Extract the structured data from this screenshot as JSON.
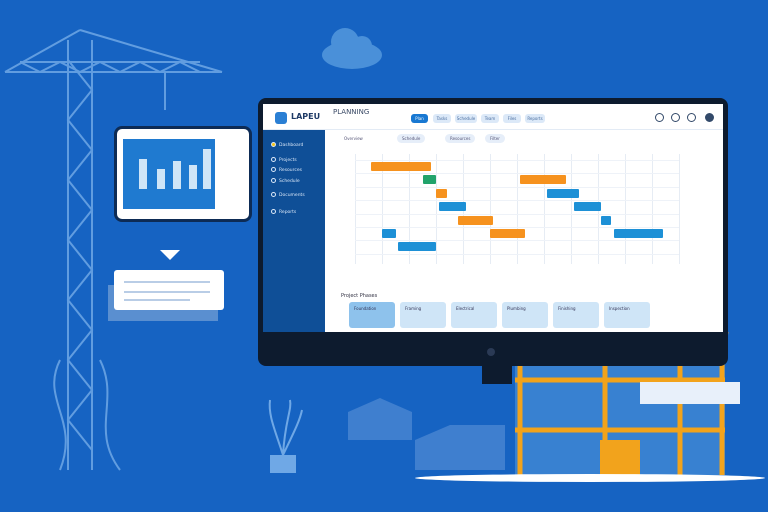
{
  "app": {
    "brand": "LAPEU",
    "title": "PLANNING"
  },
  "nav": [
    "Plan",
    "Tasks",
    "Schedule",
    "Team",
    "Files",
    "Reports"
  ],
  "sidebar": [
    "Dashboard",
    "Projects",
    "Resources",
    "Schedule",
    "Documents",
    "Reports"
  ],
  "filters": [
    "Overview",
    "Schedule",
    "Resources",
    "Filter"
  ],
  "section_title": "Project Phases",
  "cards": [
    "Foundation",
    "Framing",
    "Electrical",
    "Plumbing",
    "Finishing",
    "Inspection"
  ],
  "gantt": {
    "columns": 12,
    "rows": 7,
    "tasks": [
      {
        "row": 0,
        "start": 0.6,
        "end": 2.8,
        "color": "#f6921e"
      },
      {
        "row": 1,
        "start": 2.5,
        "end": 3.0,
        "color": "#21a36b"
      },
      {
        "row": 1,
        "start": 6.1,
        "end": 7.8,
        "color": "#f6921e"
      },
      {
        "row": 2,
        "start": 3.0,
        "end": 3.4,
        "color": "#f6921e"
      },
      {
        "row": 2,
        "start": 7.1,
        "end": 8.3,
        "color": "#1d90d6"
      },
      {
        "row": 3,
        "start": 3.1,
        "end": 4.1,
        "color": "#1d90d6"
      },
      {
        "row": 3,
        "start": 8.1,
        "end": 9.1,
        "color": "#1d90d6"
      },
      {
        "row": 4,
        "start": 3.8,
        "end": 5.1,
        "color": "#f6921e"
      },
      {
        "row": 4,
        "start": 9.1,
        "end": 9.5,
        "color": "#1d90d6"
      },
      {
        "row": 5,
        "start": 1.0,
        "end": 1.5,
        "color": "#1d90d6"
      },
      {
        "row": 5,
        "start": 5.0,
        "end": 6.3,
        "color": "#f6921e"
      },
      {
        "row": 5,
        "start": 9.6,
        "end": 11.4,
        "color": "#1d90d6"
      },
      {
        "row": 6,
        "start": 1.6,
        "end": 3.0,
        "color": "#1d90d6"
      }
    ]
  },
  "colors": {
    "background": "#1663c2",
    "accent_orange": "#f6921e",
    "accent_blue": "#1d90d6",
    "sidebar": "#0f4f97"
  }
}
